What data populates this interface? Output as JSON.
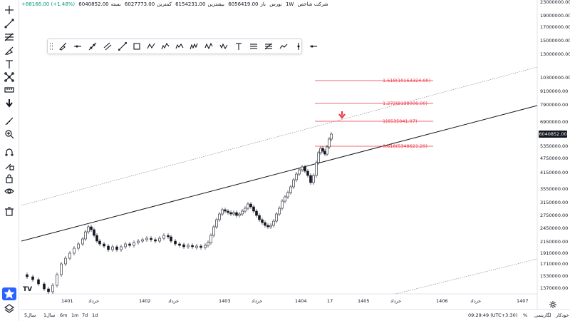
{
  "header": {
    "symbol_name": "شرکت شاخص",
    "exchange": "بورس",
    "interval": "1W",
    "open_label": "باز",
    "open_value": "6056419.00",
    "high_label": "بیشترین",
    "high_value": "6154231.00",
    "low_label": "کمترین",
    "low_value": "6027773.00",
    "close_label": "بسته",
    "close_value": "6040852.00",
    "change": "+88166.00 (+1.48%)"
  },
  "price_scale": {
    "labels": [
      "23000000.00",
      "19000000.00",
      "17000000.00",
      "15000000.00",
      "13000000.00",
      "10300000.00",
      "9100000.00",
      "7900000.00",
      "6900000.00",
      "5350000.00",
      "4750000.00",
      "4150000.00",
      "3550000.00",
      "3150000.00",
      "2750000.00",
      "2450000.00",
      "2150000.00",
      "1910000.00",
      "1710000.00",
      "1530000.00",
      "1370000.00"
    ],
    "last_price": "6040852.00"
  },
  "time_scale": {
    "labels": [
      "1401",
      "خرداد",
      "1402",
      "خرداد",
      "1403",
      "خرداد",
      "1404",
      "17",
      "1405",
      "خرداد",
      "1406",
      "خرداد",
      "1407"
    ]
  },
  "fib_labels": [
    {
      "text": "1.618(10163324.00)"
    },
    {
      "text": "1.272(8138008.00)"
    },
    {
      "text": "1(6535041.07)"
    },
    {
      "text": "0.618(5348621.29)"
    }
  ],
  "chart_data": {
    "type": "candlestick",
    "interval": "1W",
    "y_scale": "log",
    "ylim": [
      1300000,
      23000000
    ],
    "x_range": [
      "1400",
      "1407"
    ],
    "last_close": 6040852.0,
    "series_approx_close": [
      {
        "x": "1400 end",
        "y": 1550000
      },
      {
        "x": "1401",
        "y": 1450000
      },
      {
        "x": "1401 خرداد",
        "y": 2500000
      },
      {
        "x": "1401 end",
        "y": 2100000
      },
      {
        "x": "1402",
        "y": 2200000
      },
      {
        "x": "1402 خرداد",
        "y": 2250000
      },
      {
        "x": "1402 end",
        "y": 2050000
      },
      {
        "x": "1403",
        "y": 2750000
      },
      {
        "x": "1403 خرداد",
        "y": 2850000
      },
      {
        "x": "1403 mid",
        "y": 2400000
      },
      {
        "x": "1404",
        "y": 4300000
      },
      {
        "x": "1404 mid",
        "y": 3800000
      },
      {
        "x": "17",
        "y": 6040852
      }
    ],
    "fibonacci_levels": [
      {
        "ratio": 1.618,
        "price": 10163324.0
      },
      {
        "ratio": 1.272,
        "price": 8138008.0
      },
      {
        "ratio": 1,
        "price": 6535041.07
      },
      {
        "ratio": 0.618,
        "price": 5348621.29
      }
    ],
    "grid": false
  },
  "drawing_tools": [
    "grip",
    "brush",
    "horizontal-ray",
    "trend-line",
    "parallel-channel",
    "extended-line",
    "rectangle",
    "abcd-pattern",
    "elliott-wave-1",
    "elliott-wave-2",
    "elliott-wave-3",
    "elliott-wave-4",
    "elliott-wave-5",
    "text",
    "fib-retracement",
    "fib-channel",
    "path",
    "vertical-line",
    "horizontal-line"
  ],
  "left_tools": [
    "crosshair",
    "trend-line",
    "fib",
    "brush",
    "text",
    "pattern",
    "measure",
    "arrow-down",
    "ruler",
    "zoom-in",
    "magnet",
    "lock-draw",
    "lock",
    "eye",
    "trash",
    "star",
    "layers"
  ],
  "bottom": {
    "ranges": [
      "1d",
      "7d",
      "1m",
      "6m",
      "1y",
      "5y"
    ],
    "range_labels": {
      "1y": "1سال",
      "5y": "5سال"
    },
    "time": "09:29:49 (UTC+3:30)",
    "percent": "%",
    "log": "لگاریتمی",
    "auto": "خودکار"
  }
}
